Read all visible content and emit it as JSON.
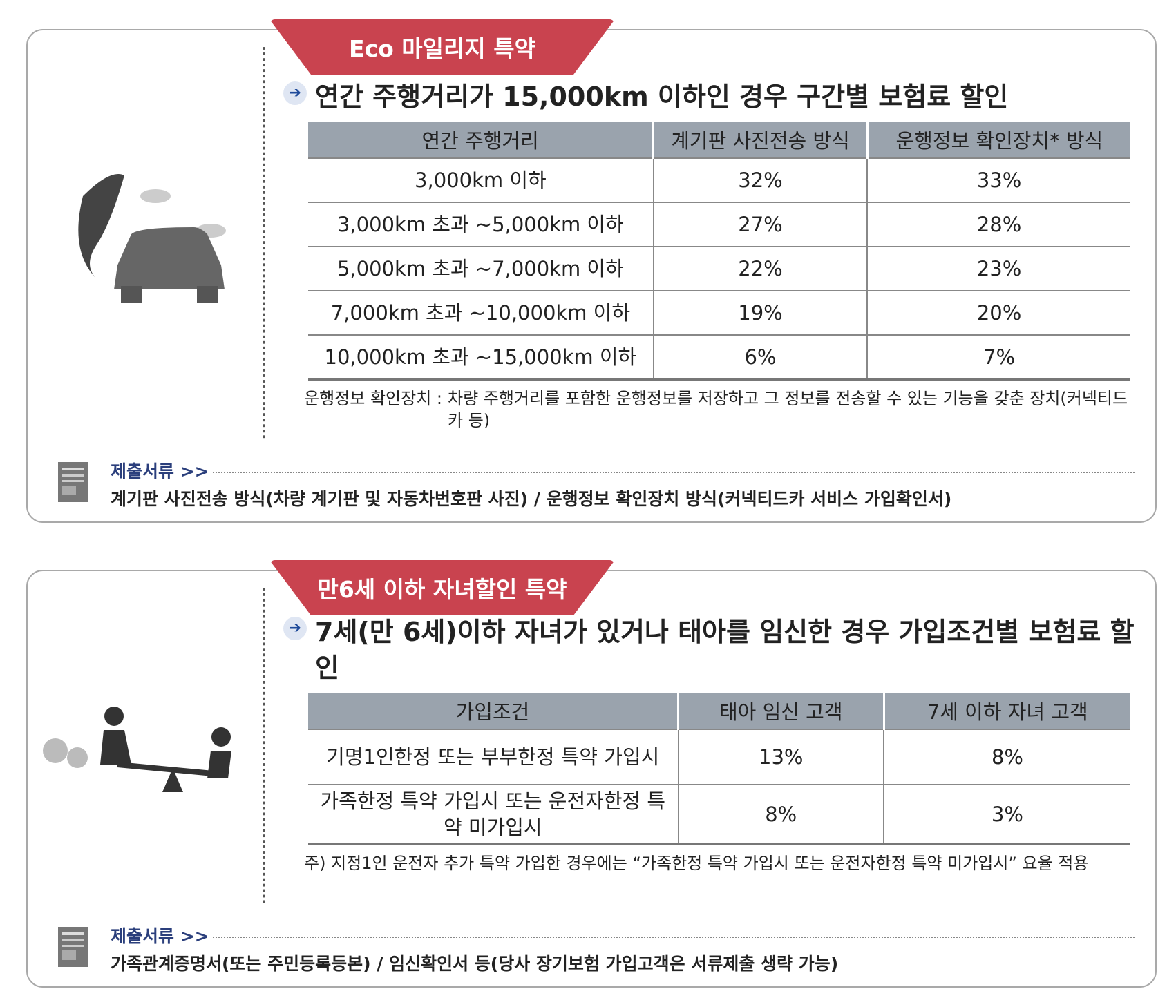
{
  "sections": [
    {
      "ribbon": "Eco 마일리지 특약",
      "heading": "연간 주행거리가 15,000km 이하인 경우 구간별 보험료 할인",
      "table": {
        "header": [
          "연간 주행거리",
          "계기판 사진전송 방식",
          "운행정보 확인장치* 방식"
        ],
        "rows": [
          [
            "3,000km 이하",
            "32%",
            "33%"
          ],
          [
            "3,000km 초과 ~5,000km 이하",
            "27%",
            "28%"
          ],
          [
            "5,000km 초과 ~7,000km 이하",
            "22%",
            "23%"
          ],
          [
            "7,000km 초과 ~10,000km 이하",
            "19%",
            "20%"
          ],
          [
            "10,000km 초과 ~15,000km 이하",
            "6%",
            "7%"
          ]
        ]
      },
      "note": {
        "label": "운행정보 확인장치 :",
        "text": "차량 주행거리를 포함한 운행정보를 저장하고 그 정보를 전송할 수 있는 기능을 갖춘 장치(커넥티드카 등)"
      },
      "docs": {
        "label": "제출서류 >>",
        "text": "계기판 사진전송 방식(차량 계기판 및 자동차번호판 사진) / 운행정보 확인장치 방식(커넥티드카 서비스 가입확인서)"
      }
    },
    {
      "ribbon": "만6세 이하 자녀할인 특약",
      "heading": "7세(만 6세)이하 자녀가 있거나 태아를 임신한 경우 가입조건별 보험료 할인",
      "table": {
        "header": [
          "가입조건",
          "태아 임신 고객",
          "7세 이하 자녀 고객"
        ],
        "rows": [
          [
            "기명1인한정 또는 부부한정 특약 가입시",
            "13%",
            "8%"
          ],
          [
            "가족한정 특약 가입시 또는 운전자한정 특약 미가입시",
            "8%",
            "3%"
          ]
        ]
      },
      "note": {
        "text": "주) 지정1인 운전자 추가 특약 가입한 경우에는 “가족한정 특약 가입시 또는 운전자한정 특약 미가입시” 요율 적용"
      },
      "docs": {
        "label": "제출서류 >>",
        "text": "가족관계증명서(또는 주민등록등본) / 임신확인서 등(당사 장기보험 가입고객은 서류제출 생략 가능)"
      }
    }
  ]
}
